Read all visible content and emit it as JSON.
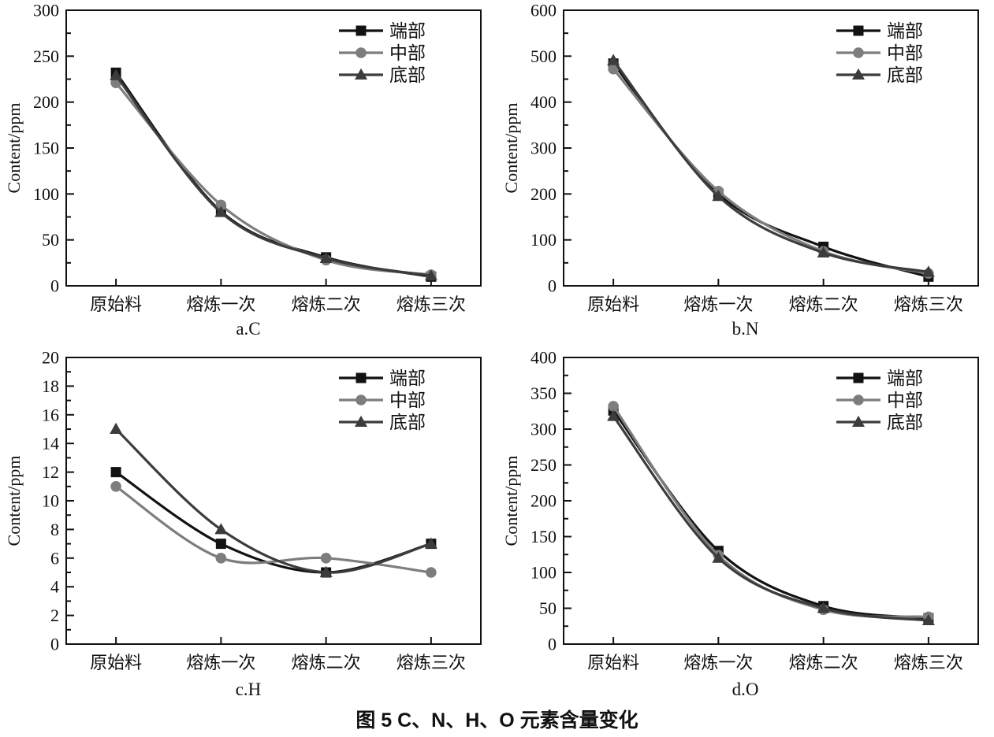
{
  "figure": {
    "caption": "图 5  C、N、H、O 元素含量变化"
  },
  "shared": {
    "categories": [
      "原始料",
      "熔炼一次",
      "熔炼二次",
      "熔炼三次"
    ],
    "ylabel": "Content/ppm",
    "legend_position": "top-right",
    "grid": false,
    "series_meta": [
      {
        "key": "end-section",
        "label": "端部",
        "color": "#121212",
        "marker": "square"
      },
      {
        "key": "middle-section",
        "label": "中部",
        "color": "#7d7d7d",
        "marker": "circle"
      },
      {
        "key": "bottom-section",
        "label": "底部",
        "color": "#3c3c3c",
        "marker": "triangle"
      }
    ]
  },
  "chart_data": [
    {
      "id": "a",
      "type": "line",
      "title": "a.C",
      "categories": [
        "原始料",
        "熔炼一次",
        "熔炼二次",
        "熔炼三次"
      ],
      "xlabel": "",
      "ylabel": "Content/ppm",
      "ylim": [
        0,
        300
      ],
      "ytick_step": 50,
      "series": [
        {
          "name": "端部",
          "values": [
            232,
            81,
            31,
            10
          ]
        },
        {
          "name": "中部",
          "values": [
            221,
            88,
            28,
            12
          ]
        },
        {
          "name": "底部",
          "values": [
            229,
            80,
            30,
            11
          ]
        }
      ]
    },
    {
      "id": "b",
      "type": "line",
      "title": "b.N",
      "categories": [
        "原始料",
        "熔炼一次",
        "熔炼二次",
        "熔炼三次"
      ],
      "xlabel": "",
      "ylabel": "Content/ppm",
      "ylim": [
        0,
        600
      ],
      "ytick_step": 100,
      "series": [
        {
          "name": "端部",
          "values": [
            484,
            200,
            85,
            20
          ]
        },
        {
          "name": "中部",
          "values": [
            472,
            206,
            75,
            27
          ]
        },
        {
          "name": "底部",
          "values": [
            491,
            195,
            72,
            30
          ]
        }
      ]
    },
    {
      "id": "c",
      "type": "line",
      "title": "c.H",
      "categories": [
        "原始料",
        "熔炼一次",
        "熔炼二次",
        "熔炼三次"
      ],
      "xlabel": "",
      "ylabel": "Content/ppm",
      "ylim": [
        0,
        20
      ],
      "ytick_step": 2,
      "series": [
        {
          "name": "端部",
          "values": [
            12,
            7,
            5,
            7
          ]
        },
        {
          "name": "中部",
          "values": [
            11,
            6,
            6,
            5
          ]
        },
        {
          "name": "底部",
          "values": [
            15,
            8,
            5,
            7
          ]
        }
      ]
    },
    {
      "id": "d",
      "type": "line",
      "title": "d.O",
      "categories": [
        "原始料",
        "熔炼一次",
        "熔炼二次",
        "熔炼三次"
      ],
      "xlabel": "",
      "ylabel": "Content/ppm",
      "ylim": [
        0,
        400
      ],
      "ytick_step": 50,
      "series": [
        {
          "name": "端部",
          "values": [
            326,
            130,
            53,
            36
          ]
        },
        {
          "name": "中部",
          "values": [
            332,
            124,
            48,
            38
          ]
        },
        {
          "name": "底部",
          "values": [
            318,
            120,
            50,
            33
          ]
        }
      ]
    }
  ]
}
